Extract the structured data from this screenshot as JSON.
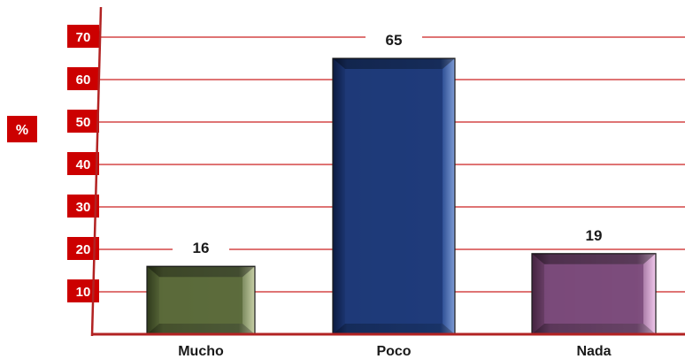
{
  "chart_data": {
    "type": "bar",
    "categories": [
      "Mucho",
      "Poco",
      "Nada"
    ],
    "values": [
      16,
      65,
      19
    ],
    "data_labels": [
      "16",
      "65",
      "19"
    ],
    "title": "",
    "xlabel": "",
    "ylabel": "%",
    "ylim": [
      0,
      70
    ],
    "yticks": [
      10,
      20,
      30,
      40,
      50,
      60,
      70
    ],
    "ytick_labels": [
      "10",
      "20",
      "30",
      "40",
      "50",
      "60",
      "70"
    ],
    "grid": true,
    "legend": "none",
    "colors": {
      "grid": "#cc2222",
      "tick_box": "#cc0000",
      "axis": "#b22222",
      "bars": [
        "#5a6a3a",
        "#1f3a78",
        "#7a4a7a"
      ]
    }
  }
}
